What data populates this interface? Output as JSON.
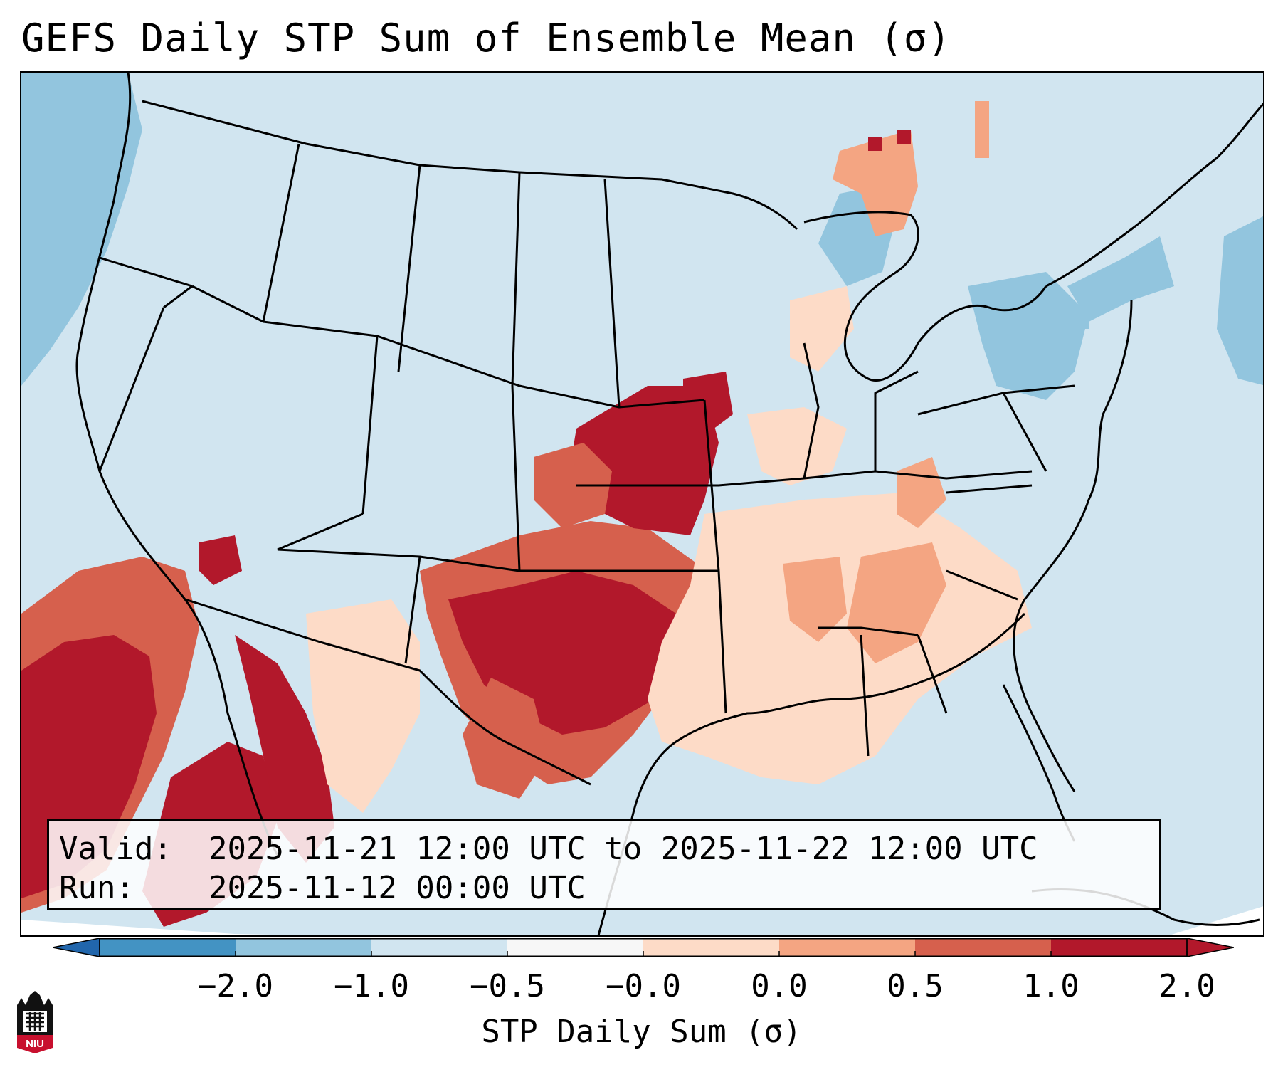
{
  "title": "GEFS Daily STP Sum of Ensemble Mean (σ)",
  "info": {
    "valid_label": "Valid:",
    "valid_value": "2025-11-21 12:00 UTC to 2025-11-22 12:00 UTC",
    "run_label": "Run:",
    "run_value": "2025-11-12 00:00 UTC"
  },
  "colorbar": {
    "label": "STP Daily Sum (σ)",
    "ticks": [
      "−2.0",
      "−1.0",
      "−0.5",
      "−0.0",
      "0.0",
      "0.5",
      "1.0",
      "2.0"
    ],
    "colors": [
      "#4393c3",
      "#92c5de",
      "#d1e5f0",
      "#f7f7f7",
      "#fddbc7",
      "#f4a582",
      "#d6604d",
      "#b2182b"
    ],
    "under_color": "#2166ac",
    "over_color": "#b2182b"
  },
  "logo": {
    "text": "NIU"
  }
}
